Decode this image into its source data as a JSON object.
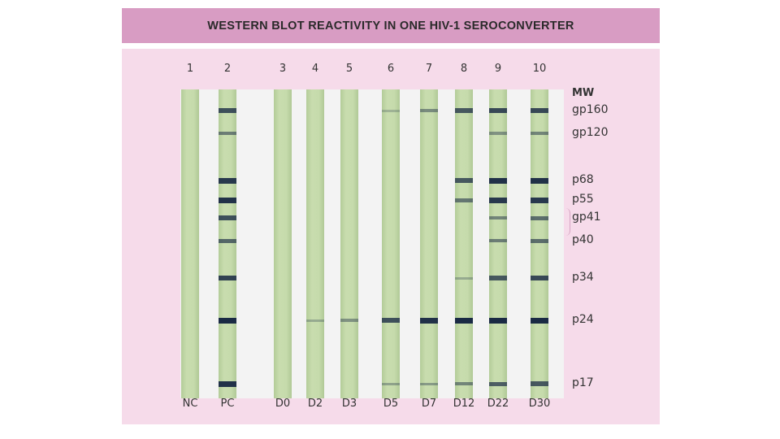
{
  "title": "WESTERN BLOT REACTIVITY IN ONE HIV-1 SEROCONVERTER",
  "lanes": [
    {
      "number": "1",
      "code": "NC",
      "bands": []
    },
    {
      "number": "2",
      "code": "PC",
      "bands": [
        {
          "protein": "gp160",
          "intensity": 0.75
        },
        {
          "protein": "gp120",
          "intensity": 0.45
        },
        {
          "protein": "p68",
          "intensity": 0.9
        },
        {
          "protein": "p55",
          "intensity": 0.95
        },
        {
          "protein": "gp41",
          "intensity": 0.75
        },
        {
          "protein": "p40",
          "intensity": 0.6
        },
        {
          "protein": "p34",
          "intensity": 0.85
        },
        {
          "protein": "p24",
          "intensity": 1.0
        },
        {
          "protein": "p17",
          "intensity": 0.95
        }
      ]
    },
    {
      "number": "3",
      "code": "D0",
      "bands": []
    },
    {
      "number": "4",
      "code": "D2",
      "bands": [
        {
          "protein": "p24",
          "intensity": 0.15
        }
      ]
    },
    {
      "number": "5",
      "code": "D3",
      "bands": [
        {
          "protein": "p24",
          "intensity": 0.3
        }
      ]
    },
    {
      "number": "6",
      "code": "D5",
      "bands": [
        {
          "protein": "gp160",
          "intensity": 0.1
        },
        {
          "protein": "p24",
          "intensity": 0.75
        },
        {
          "protein": "p17",
          "intensity": 0.2
        }
      ]
    },
    {
      "number": "7",
      "code": "D7",
      "bands": [
        {
          "protein": "gp160",
          "intensity": 0.35
        },
        {
          "protein": "p24",
          "intensity": 0.95
        },
        {
          "protein": "p17",
          "intensity": 0.25
        }
      ]
    },
    {
      "number": "8",
      "code": "D12",
      "bands": [
        {
          "protein": "gp160",
          "intensity": 0.7
        },
        {
          "protein": "p68",
          "intensity": 0.7
        },
        {
          "protein": "p55",
          "intensity": 0.5
        },
        {
          "protein": "p34",
          "intensity": 0.15
        },
        {
          "protein": "p24",
          "intensity": 1.0
        },
        {
          "protein": "p17",
          "intensity": 0.4
        }
      ]
    },
    {
      "number": "9",
      "code": "D22",
      "bands": [
        {
          "protein": "gp160",
          "intensity": 0.8
        },
        {
          "protein": "gp120",
          "intensity": 0.3
        },
        {
          "protein": "p68",
          "intensity": 0.95
        },
        {
          "protein": "p55",
          "intensity": 0.9
        },
        {
          "protein": "gp41",
          "intensity": 0.4
        },
        {
          "protein": "p40",
          "intensity": 0.45
        },
        {
          "protein": "p34",
          "intensity": 0.7
        },
        {
          "protein": "p24",
          "intensity": 1.0
        },
        {
          "protein": "p17",
          "intensity": 0.65
        }
      ]
    },
    {
      "number": "10",
      "code": "D30",
      "bands": [
        {
          "protein": "gp160",
          "intensity": 0.8
        },
        {
          "protein": "gp120",
          "intensity": 0.4
        },
        {
          "protein": "p68",
          "intensity": 0.95
        },
        {
          "protein": "p55",
          "intensity": 0.9
        },
        {
          "protein": "gp41",
          "intensity": 0.55
        },
        {
          "protein": "p40",
          "intensity": 0.55
        },
        {
          "protein": "p34",
          "intensity": 0.8
        },
        {
          "protein": "p24",
          "intensity": 1.0
        },
        {
          "protein": "p17",
          "intensity": 0.7
        }
      ]
    }
  ],
  "mw_markers": {
    "title": "MW",
    "labels": [
      "gp160",
      "gp120",
      "p68",
      "p55",
      "gp41",
      "p40",
      "p34",
      "p24",
      "p17"
    ]
  },
  "colors": {
    "title_bar": "#d89cc3",
    "panel": "#f6dbea",
    "strip": "#c6dbac",
    "band": "#1a2a44"
  }
}
